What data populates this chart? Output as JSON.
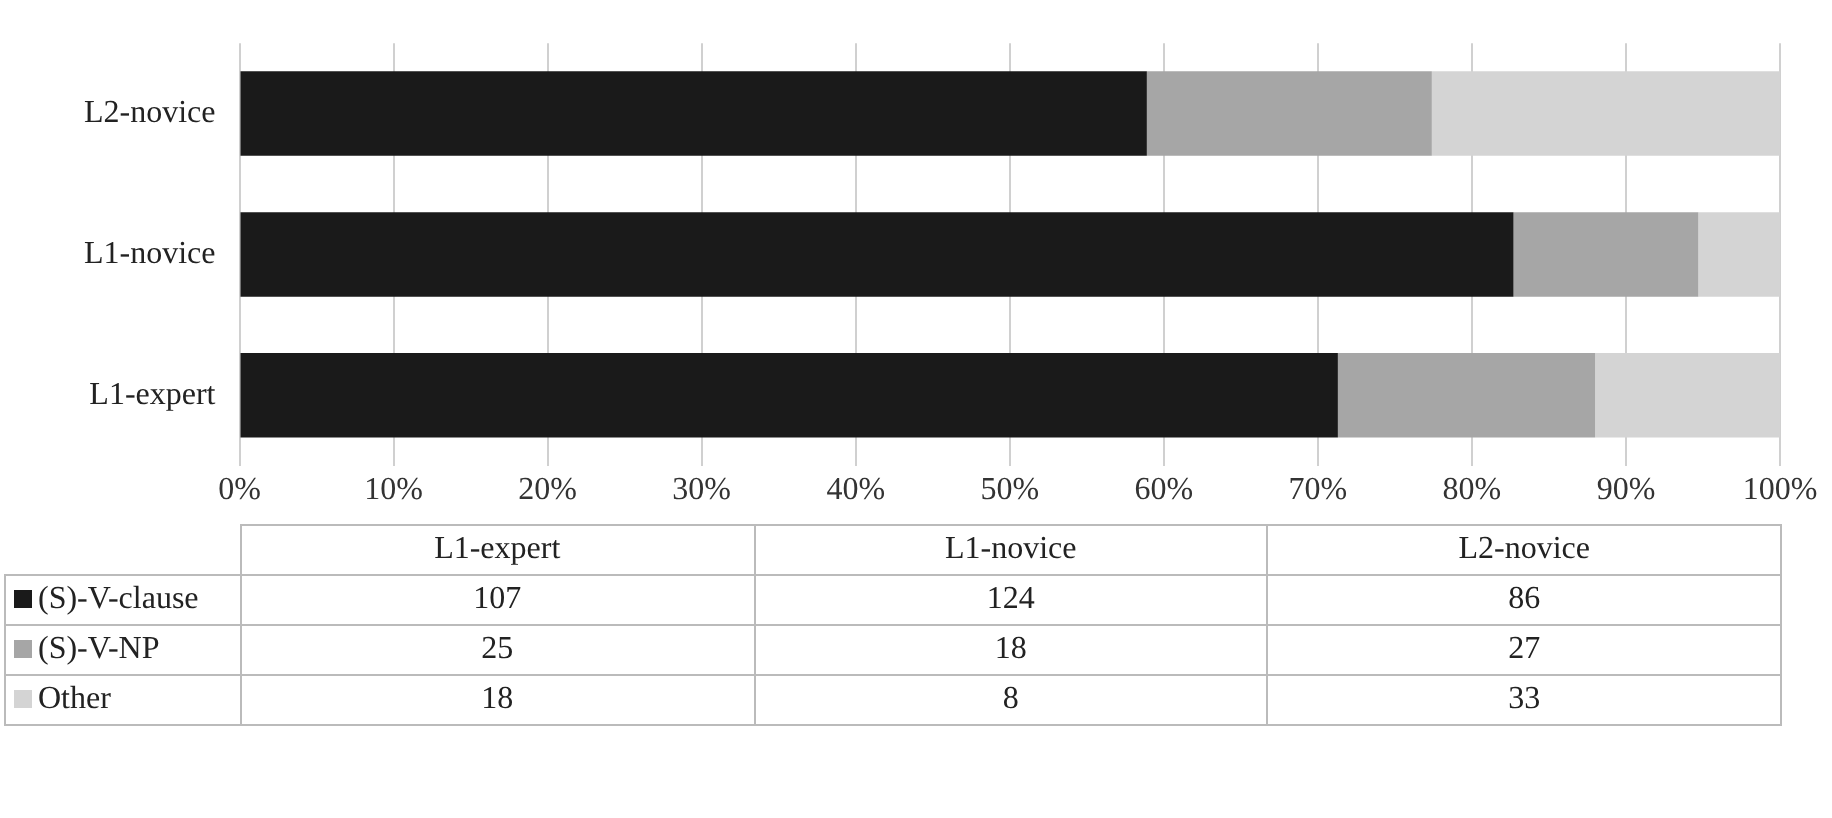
{
  "chart_data": [
    {
      "type": "bar",
      "orientation": "horizontal",
      "stacked": true,
      "categories": [
        "L2-novice",
        "L1-novice",
        "L1-expert"
      ],
      "series": [
        {
          "color": "#1a1a1a",
          "values": [
            58.9,
            82.7,
            71.3
          ]
        },
        {
          "color": "#a6a6a6",
          "values": [
            18.5,
            12.0,
            16.7
          ]
        },
        {
          "color": "#d4d4d4",
          "values": [
            22.6,
            5.3,
            12.0
          ]
        }
      ],
      "xlim": [
        0,
        100
      ],
      "xticks": [
        {
          "value": 0,
          "label": "0%"
        },
        {
          "value": 10,
          "label": "10%"
        },
        {
          "value": 20,
          "label": "20%"
        },
        {
          "value": 30,
          "label": "30%"
        },
        {
          "value": 40,
          "label": "40%"
        },
        {
          "value": 50,
          "label": "50%"
        },
        {
          "value": 60,
          "label": "60%"
        },
        {
          "value": 70,
          "label": "70%"
        },
        {
          "value": 80,
          "label": "80%"
        },
        {
          "value": 90,
          "label": "90%"
        },
        {
          "value": 100,
          "label": "100%"
        }
      ],
      "grid": "x"
    },
    {
      "type": "other",
      "categories": [
        "L1-expert",
        "L1-novice",
        "L2-novice"
      ],
      "series": [
        {
          "name": "(S)-V-clause",
          "color": "#1a1a1a",
          "values": [
            107,
            124,
            86
          ]
        },
        {
          "name": "(S)-V-NP",
          "color": "#a6a6a6",
          "values": [
            25,
            18,
            27
          ]
        },
        {
          "name": "Other",
          "color": "#d4d4d4",
          "values": [
            18,
            8,
            33
          ]
        }
      ],
      "data_labels": true,
      "legend": "left"
    }
  ]
}
